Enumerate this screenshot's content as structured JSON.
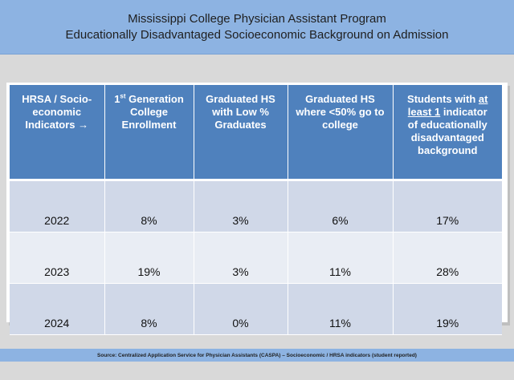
{
  "title": {
    "line1": "Mississippi College Physician Assistant Program",
    "line2": "Educationally Disadvantaged Socioeconomic Background on Admission"
  },
  "table": {
    "headers": {
      "indicator": {
        "line1": "HRSA / Socio-",
        "line2": "economic",
        "line3": "Indicators →"
      },
      "first_gen": {
        "pre": "1",
        "sup": "st",
        "post": " Generation",
        "line2": "College",
        "line3": "Enrollment"
      },
      "low_grad": {
        "line1": "Graduated HS",
        "line2": "with Low %",
        "line3": "Graduates"
      },
      "under50": {
        "line1": "Graduated HS",
        "line2": "where <50% go to",
        "line3": "college"
      },
      "any": {
        "pre": "Students with ",
        "ul1": "at",
        "ul2": "least 1",
        "post": " indicator",
        "line3": "of educationally",
        "line4": "disadvantaged",
        "line5": "background"
      }
    },
    "rows": [
      {
        "year": "2022",
        "first_gen": "8%",
        "low_grad": "3%",
        "under50": "6%",
        "any": "17%"
      },
      {
        "year": "2023",
        "first_gen": "19%",
        "low_grad": "3%",
        "under50": "11%",
        "any": "28%"
      },
      {
        "year": "2024",
        "first_gen": "8%",
        "low_grad": "0%",
        "under50": "11%",
        "any": "19%"
      }
    ]
  },
  "footer": "Source: Centralized Application Service for Physician Assistants (CASPA) – Socioeconomic / HRSA indicators (student reported)",
  "colors": {
    "title_bar": "#8db3e2",
    "header_fill": "#4f81bd",
    "row_dark": "#d0d8e8",
    "row_light": "#e9edf4",
    "page_bg": "#d9d9d9"
  }
}
